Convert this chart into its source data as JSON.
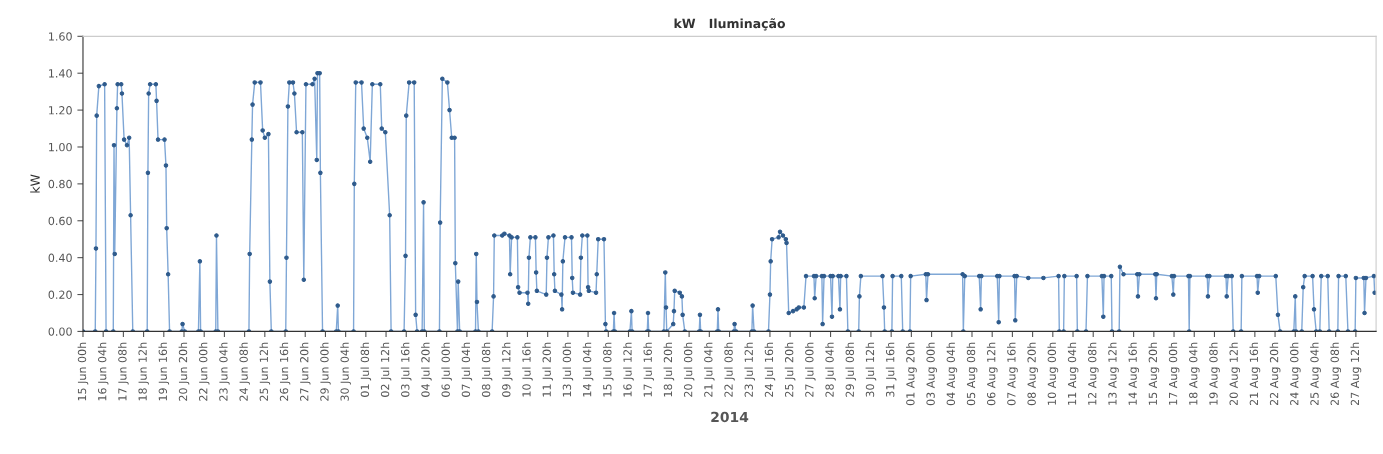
{
  "chart_data": {
    "type": "line",
    "title": "kW   Iluminação",
    "xlabel": "2014",
    "ylabel": "kW",
    "ylim": [
      0,
      1.6
    ],
    "yticks": [
      {
        "value": 0,
        "label": "0.00"
      },
      {
        "value": 0.2,
        "label": "0.20"
      },
      {
        "value": 0.4,
        "label": "0.40"
      },
      {
        "value": 0.6,
        "label": "0.60"
      },
      {
        "value": 0.8,
        "label": "0.80"
      },
      {
        "value": 1.0,
        "label": "1.00"
      },
      {
        "value": 1.2,
        "label": "1.20"
      },
      {
        "value": 1.4,
        "label": "1.40"
      },
      {
        "value": 1.6,
        "label": "1.60"
      }
    ],
    "xlim": [
      "2014-06-15T00:00",
      "2014-08-28T16:00"
    ],
    "xticks": [
      {
        "value": "2014-06-15T00:00",
        "label": "15 Jun 00h"
      },
      {
        "value": "2014-06-16T04:00",
        "label": "16 Jun 04h"
      },
      {
        "value": "2014-06-17T08:00",
        "label": "17 Jun 08h"
      },
      {
        "value": "2014-06-18T12:00",
        "label": "18 Jun 12h"
      },
      {
        "value": "2014-06-19T16:00",
        "label": "19 Jun 16h"
      },
      {
        "value": "2014-06-20T20:00",
        "label": "20 Jun 20h"
      },
      {
        "value": "2014-06-22T00:00",
        "label": "22 Jun 00h"
      },
      {
        "value": "2014-06-23T04:00",
        "label": "23 Jun 04h"
      },
      {
        "value": "2014-06-24T08:00",
        "label": "24 Jun 08h"
      },
      {
        "value": "2014-06-25T12:00",
        "label": "25 Jun 12h"
      },
      {
        "value": "2014-06-26T16:00",
        "label": "26 Jun 16h"
      },
      {
        "value": "2014-06-27T20:00",
        "label": "27 Jun 20h"
      },
      {
        "value": "2014-06-29T00:00",
        "label": "29 Jun 00h"
      },
      {
        "value": "2014-06-30T04:00",
        "label": "30 Jun 04h"
      },
      {
        "value": "2014-07-01T08:00",
        "label": "01 Jul 08h"
      },
      {
        "value": "2014-07-02T12:00",
        "label": "02 Jul 12h"
      },
      {
        "value": "2014-07-03T16:00",
        "label": "03 Jul 16h"
      },
      {
        "value": "2014-07-04T20:00",
        "label": "04 Jul 20h"
      },
      {
        "value": "2014-07-06T00:00",
        "label": "06 Jul 00h"
      },
      {
        "value": "2014-07-07T04:00",
        "label": "07 Jul 04h"
      },
      {
        "value": "2014-07-08T08:00",
        "label": "08 Jul 08h"
      },
      {
        "value": "2014-07-09T12:00",
        "label": "09 Jul 12h"
      },
      {
        "value": "2014-07-10T16:00",
        "label": "10 Jul 16h"
      },
      {
        "value": "2014-07-11T20:00",
        "label": "11 Jul 20h"
      },
      {
        "value": "2014-07-13T00:00",
        "label": "13 Jul 00h"
      },
      {
        "value": "2014-07-14T04:00",
        "label": "14 Jul 04h"
      },
      {
        "value": "2014-07-15T08:00",
        "label": "15 Jul 08h"
      },
      {
        "value": "2014-07-16T12:00",
        "label": "16 Jul 12h"
      },
      {
        "value": "2014-07-17T16:00",
        "label": "17 Jul 16h"
      },
      {
        "value": "2014-07-18T20:00",
        "label": "18 Jul 20h"
      },
      {
        "value": "2014-07-20T00:00",
        "label": "20 Jul 00h"
      },
      {
        "value": "2014-07-21T04:00",
        "label": "21 Jul 04h"
      },
      {
        "value": "2014-07-22T08:00",
        "label": "22 Jul 08h"
      },
      {
        "value": "2014-07-23T12:00",
        "label": "23 Jul 12h"
      },
      {
        "value": "2014-07-24T16:00",
        "label": "24 Jul 16h"
      },
      {
        "value": "2014-07-25T20:00",
        "label": "25 Jul 20h"
      },
      {
        "value": "2014-07-27T00:00",
        "label": "27 Jul 00h"
      },
      {
        "value": "2014-07-28T04:00",
        "label": "28 Jul 04h"
      },
      {
        "value": "2014-07-29T08:00",
        "label": "29 Jul 08h"
      },
      {
        "value": "2014-07-30T12:00",
        "label": "30 Jul 12h"
      },
      {
        "value": "2014-07-31T16:00",
        "label": "31 Jul 16h"
      },
      {
        "value": "2014-08-01T20:00",
        "label": "01 Aug 20h"
      },
      {
        "value": "2014-08-03T00:00",
        "label": "03 Aug 00h"
      },
      {
        "value": "2014-08-04T04:00",
        "label": "04 Aug 04h"
      },
      {
        "value": "2014-08-05T08:00",
        "label": "05 Aug 08h"
      },
      {
        "value": "2014-08-06T12:00",
        "label": "06 Aug 12h"
      },
      {
        "value": "2014-08-07T16:00",
        "label": "07 Aug 16h"
      },
      {
        "value": "2014-08-08T20:00",
        "label": "08 Aug 20h"
      },
      {
        "value": "2014-08-10T00:00",
        "label": "10 Aug 00h"
      },
      {
        "value": "2014-08-11T04:00",
        "label": "11 Aug 04h"
      },
      {
        "value": "2014-08-12T08:00",
        "label": "12 Aug 08h"
      },
      {
        "value": "2014-08-13T12:00",
        "label": "13 Aug 12h"
      },
      {
        "value": "2014-08-14T16:00",
        "label": "14 Aug 16h"
      },
      {
        "value": "2014-08-15T20:00",
        "label": "15 Aug 20h"
      },
      {
        "value": "2014-08-17T00:00",
        "label": "17 Aug 00h"
      },
      {
        "value": "2014-08-18T04:00",
        "label": "18 Aug 04h"
      },
      {
        "value": "2014-08-19T08:00",
        "label": "19 Aug 08h"
      },
      {
        "value": "2014-08-20T12:00",
        "label": "20 Aug 12h"
      },
      {
        "value": "2014-08-21T16:00",
        "label": "21 Aug 16h"
      },
      {
        "value": "2014-08-22T20:00",
        "label": "22 Aug 20h"
      },
      {
        "value": "2014-08-24T00:00",
        "label": "24 Aug 00h"
      },
      {
        "value": "2014-08-25T04:00",
        "label": "25 Aug 04h"
      },
      {
        "value": "2014-08-26T08:00",
        "label": "26 Aug 08h"
      },
      {
        "value": "2014-08-27T12:00",
        "label": "27 Aug 12h"
      }
    ],
    "grid": false,
    "marker": "circle",
    "line_style": "solid",
    "series": [
      {
        "color": "#7fa7d6",
        "x": [
          "2014-06-15T00:00",
          "2014-06-15T17:00",
          "2014-06-15T18:00",
          "2014-06-15T19:00",
          "2014-06-15T22:00",
          "2014-06-16T06:00",
          "2014-06-16T08:00",
          "2014-06-16T18:00",
          "2014-06-16T19:00",
          "2014-06-16T20:00",
          "2014-06-16T23:00",
          "2014-06-17T00:00",
          "2014-06-17T05:00",
          "2014-06-17T06:00",
          "2014-06-17T09:00",
          "2014-06-17T13:00",
          "2014-06-17T16:00",
          "2014-06-17T18:00",
          "2014-06-17T21:00",
          "2014-06-18T17:00",
          "2014-06-18T18:00",
          "2014-06-18T19:00",
          "2014-06-18T21:00",
          "2014-06-19T05:00",
          "2014-06-19T06:00",
          "2014-06-19T08:00",
          "2014-06-19T17:00",
          "2014-06-19T19:00",
          "2014-06-19T20:00",
          "2014-06-19T22:00",
          "2014-06-20T00:00",
          "2014-06-20T17:00",
          "2014-06-20T18:00",
          "2014-06-20T21:00",
          "2014-06-21T16:00",
          "2014-06-21T18:00",
          "2014-06-21T19:00",
          "2014-06-22T16:00",
          "2014-06-22T17:00",
          "2014-06-22T19:00",
          "2014-06-24T14:00",
          "2014-06-24T15:00",
          "2014-06-24T18:00",
          "2014-06-24T19:00",
          "2014-06-24T22:00",
          "2014-06-25T06:00",
          "2014-06-25T09:00",
          "2014-06-25T12:00",
          "2014-06-25T17:00",
          "2014-06-25T19:00",
          "2014-06-25T21:00",
          "2014-06-26T17:00",
          "2014-06-26T18:00",
          "2014-06-26T20:00",
          "2014-06-26T22:00",
          "2014-06-27T03:00",
          "2014-06-27T05:00",
          "2014-06-27T08:00",
          "2014-06-27T16:00",
          "2014-06-27T18:00",
          "2014-06-27T21:00",
          "2014-06-28T06:00",
          "2014-06-28T09:00",
          "2014-06-28T12:00",
          "2014-06-28T13:00",
          "2014-06-28T16:00",
          "2014-06-28T17:00",
          "2014-06-28T20:00",
          "2014-06-29T15:00",
          "2014-06-29T17:00",
          "2014-06-29T18:00",
          "2014-06-30T15:00",
          "2014-06-30T16:00",
          "2014-06-30T18:00",
          "2014-07-01T02:00",
          "2014-07-01T05:00",
          "2014-07-01T10:00",
          "2014-07-01T14:00",
          "2014-07-01T17:00",
          "2014-07-02T04:00",
          "2014-07-02T06:00",
          "2014-07-02T11:00",
          "2014-07-02T17:00",
          "2014-07-02T19:00",
          "2014-07-03T13:00",
          "2014-07-03T15:00",
          "2014-07-03T16:00",
          "2014-07-03T20:00",
          "2014-07-04T03:00",
          "2014-07-04T05:00",
          "2014-07-04T07:00",
          "2014-07-04T14:00",
          "2014-07-04T16:00",
          "2014-07-04T17:00",
          "2014-07-05T14:00",
          "2014-07-05T15:00",
          "2014-07-05T18:00",
          "2014-07-06T01:00",
          "2014-07-06T04:00",
          "2014-07-06T07:00",
          "2014-07-06T11:00",
          "2014-07-06T12:00",
          "2014-07-06T15:00",
          "2014-07-06T16:00",
          "2014-07-06T18:00",
          "2014-07-07T16:00",
          "2014-07-07T17:00",
          "2014-07-07T18:00",
          "2014-07-07T20:00",
          "2014-07-08T15:00",
          "2014-07-08T17:00",
          "2014-07-08T18:00",
          "2014-07-09T05:00",
          "2014-07-09T08:00",
          "2014-07-09T15:00",
          "2014-07-09T16:00",
          "2014-07-09T18:00",
          "2014-07-10T02:00",
          "2014-07-10T03:00",
          "2014-07-10T05:00",
          "2014-07-10T16:00",
          "2014-07-10T17:00",
          "2014-07-10T18:00",
          "2014-07-10T20:00",
          "2014-07-11T03:00",
          "2014-07-11T04:00",
          "2014-07-11T05:00",
          "2014-07-11T18:00",
          "2014-07-11T19:00",
          "2014-07-11T21:00",
          "2014-07-12T04:00",
          "2014-07-12T05:00",
          "2014-07-12T06:00",
          "2014-07-12T15:00",
          "2014-07-12T16:00",
          "2014-07-12T17:00",
          "2014-07-12T20:00",
          "2014-07-13T05:00",
          "2014-07-13T06:00",
          "2014-07-13T07:00",
          "2014-07-13T17:00",
          "2014-07-13T18:00",
          "2014-07-13T20:00",
          "2014-07-14T03:00",
          "2014-07-14T04:00",
          "2014-07-14T05:00",
          "2014-07-14T15:00",
          "2014-07-14T16:00",
          "2014-07-14T18:00",
          "2014-07-15T02:00",
          "2014-07-15T04:00",
          "2014-07-15T05:00",
          "2014-07-15T15:00",
          "2014-07-15T16:00",
          "2014-07-15T17:00",
          "2014-07-16T14:00",
          "2014-07-16T16:00",
          "2014-07-16T17:00",
          "2014-07-17T14:00",
          "2014-07-17T15:00",
          "2014-07-17T16:00",
          "2014-07-18T13:00",
          "2014-07-18T15:00",
          "2014-07-18T16:00",
          "2014-07-18T17:00",
          "2014-07-19T02:00",
          "2014-07-19T03:00",
          "2014-07-19T04:00",
          "2014-07-19T11:00",
          "2014-07-19T14:00",
          "2014-07-19T15:00",
          "2014-07-19T18:00",
          "2014-07-20T14:00",
          "2014-07-20T15:00",
          "2014-07-20T16:00",
          "2014-07-21T15:00",
          "2014-07-21T16:00",
          "2014-07-21T17:00",
          "2014-07-22T14:00",
          "2014-07-22T15:00",
          "2014-07-22T17:00",
          "2014-07-23T15:00",
          "2014-07-23T16:00",
          "2014-07-23T18:00",
          "2014-07-24T14:00",
          "2014-07-24T16:00",
          "2014-07-24T17:00",
          "2014-07-24T19:00",
          "2014-07-25T04:00",
          "2014-07-25T06:00",
          "2014-07-25T10:00",
          "2014-07-25T14:00",
          "2014-07-25T15:00",
          "2014-07-25T18:00",
          "2014-07-26T00:00",
          "2014-07-26T05:00",
          "2014-07-26T08:00",
          "2014-07-26T15:00",
          "2014-07-26T18:00",
          "2014-07-27T05:00",
          "2014-07-27T06:00",
          "2014-07-27T08:00",
          "2014-07-27T16:00",
          "2014-07-27T17:00",
          "2014-07-27T19:00",
          "2014-07-28T04:00",
          "2014-07-28T06:00",
          "2014-07-28T07:00",
          "2014-07-28T15:00",
          "2014-07-28T17:00",
          "2014-07-28T18:00",
          "2014-07-29T02:00",
          "2014-07-29T04:00",
          "2014-07-29T19:00",
          "2014-07-29T20:00",
          "2014-07-29T22:00",
          "2014-07-31T04:00",
          "2014-07-31T06:00",
          "2014-07-31T07:00",
          "2014-07-31T17:00",
          "2014-07-31T18:00",
          "2014-08-01T06:00",
          "2014-08-01T08:00",
          "2014-08-01T18:00",
          "2014-08-01T19:00",
          "2014-08-02T16:00",
          "2014-08-02T17:00",
          "2014-08-02T19:00",
          "2014-08-04T19:00",
          "2014-08-04T20:00",
          "2014-08-04T22:00",
          "2014-08-05T18:00",
          "2014-08-05T20:00",
          "2014-08-05T21:00",
          "2014-08-06T19:00",
          "2014-08-06T21:00",
          "2014-08-06T22:00",
          "2014-08-07T19:00",
          "2014-08-07T20:00",
          "2014-08-07T22:00",
          "2014-08-08T14:00",
          "2014-08-09T11:00",
          "2014-08-10T08:00",
          "2014-08-10T09:00",
          "2014-08-10T15:00",
          "2014-08-10T16:00",
          "2014-08-11T09:00",
          "2014-08-11T10:00",
          "2014-08-11T22:00",
          "2014-08-12T00:00",
          "2014-08-12T20:00",
          "2014-08-12T22:00",
          "2014-08-12T23:00",
          "2014-08-13T09:00",
          "2014-08-13T10:00",
          "2014-08-13T20:00",
          "2014-08-13T21:00",
          "2014-08-14T02:00",
          "2014-08-14T21:00",
          "2014-08-14T22:00",
          "2014-08-15T00:00",
          "2014-08-15T22:00",
          "2014-08-15T23:00",
          "2014-08-16T00:00",
          "2014-08-16T21:00",
          "2014-08-16T23:00",
          "2014-08-17T00:00",
          "2014-08-17T20:00",
          "2014-08-17T21:00",
          "2014-08-17T22:00",
          "2014-08-18T22:00",
          "2014-08-18T23:00",
          "2014-08-19T01:00",
          "2014-08-20T00:00",
          "2014-08-20T01:00",
          "2014-08-20T03:00",
          "2014-08-20T08:00",
          "2014-08-20T10:00",
          "2014-08-20T21:00",
          "2014-08-20T22:00",
          "2014-08-21T19:00",
          "2014-08-21T20:00",
          "2014-08-21T22:00",
          "2014-08-22T21:00",
          "2014-08-23T00:00",
          "2014-08-23T03:00",
          "2014-08-23T22:00",
          "2014-08-24T00:00",
          "2014-08-24T01:00",
          "2014-08-24T09:00",
          "2014-08-24T11:00",
          "2014-08-24T13:00",
          "2014-08-25T00:00",
          "2014-08-25T02:00",
          "2014-08-25T05:00",
          "2014-08-25T10:00",
          "2014-08-25T12:00",
          "2014-08-25T21:00",
          "2014-08-25T23:00",
          "2014-08-26T11:00",
          "2014-08-26T12:00",
          "2014-08-26T22:00",
          "2014-08-27T01:00",
          "2014-08-27T11:00",
          "2014-08-27T12:00",
          "2014-08-27T23:00",
          "2014-08-28T00:00",
          "2014-08-28T02:00",
          "2014-08-28T13:00",
          "2014-08-28T14:00"
        ],
        "values": [
          0,
          0,
          0.45,
          1.17,
          1.33,
          1.34,
          0,
          0,
          1.01,
          0.42,
          1.21,
          1.34,
          1.34,
          1.29,
          1.04,
          1.01,
          1.05,
          0.63,
          0,
          0,
          0.86,
          1.29,
          1.34,
          1.34,
          1.25,
          1.04,
          1.04,
          0.9,
          0.56,
          0.31,
          0,
          0,
          0.04,
          0,
          0,
          0.38,
          0,
          0,
          0.52,
          0,
          0,
          0.42,
          1.04,
          1.23,
          1.35,
          1.35,
          1.09,
          1.05,
          1.07,
          0.27,
          0,
          0,
          0.4,
          1.22,
          1.35,
          1.35,
          1.29,
          1.08,
          1.08,
          0.28,
          1.34,
          1.34,
          1.37,
          0.93,
          1.4,
          1.4,
          0.86,
          0,
          0,
          0.14,
          0,
          0,
          0.8,
          1.35,
          1.35,
          1.1,
          1.05,
          0.92,
          1.34,
          1.34,
          1.1,
          1.08,
          0.63,
          0,
          0,
          0.41,
          1.17,
          1.35,
          1.35,
          0.09,
          0,
          0,
          0.7,
          0,
          0,
          0.59,
          1.37,
          1.35,
          1.2,
          1.05,
          1.05,
          0.37,
          0,
          0.27,
          0,
          0,
          0.42,
          0.16,
          0,
          0,
          0.19,
          0.52,
          0.52,
          0.53,
          0.52,
          0.31,
          0.51,
          0.51,
          0.24,
          0.21,
          0.21,
          0.15,
          0.4,
          0.51,
          0.51,
          0.32,
          0.22,
          0.2,
          0.4,
          0.51,
          0.52,
          0.31,
          0.22,
          0.2,
          0.12,
          0.38,
          0.51,
          0.51,
          0.29,
          0.21,
          0.2,
          0.4,
          0.52,
          0.52,
          0.24,
          0.22,
          0.21,
          0.31,
          0.5,
          0.5,
          0.04,
          0,
          0,
          0.1,
          0,
          0,
          0.11,
          0,
          0,
          0.1,
          0,
          0,
          0.32,
          0.13,
          0,
          0.04,
          0.11,
          0.22,
          0.21,
          0.19,
          0.09,
          0,
          0,
          0.09,
          0,
          0,
          0.12,
          0,
          0,
          0.04,
          0,
          0,
          0.14,
          0,
          0,
          0.2,
          0.38,
          0.5,
          0.51,
          0.54,
          0.52,
          0.5,
          0.48,
          0.1,
          0.11,
          0.12,
          0.13,
          0.13,
          0.3,
          0.3,
          0.18,
          0.3,
          0.3,
          0.04,
          0.3,
          0.3,
          0.08,
          0.3,
          0.3,
          0.12,
          0.3,
          0.3,
          0,
          0,
          0.19,
          0.3,
          0.3,
          0.13,
          0,
          0,
          0.3,
          0.3,
          0,
          0,
          0.3,
          0.31,
          0.17,
          0.31,
          0.31,
          0,
          0.3,
          0.3,
          0.12,
          0.3,
          0.3,
          0.05,
          0.3,
          0.3,
          0.06,
          0.3,
          0.29,
          0.29,
          0.3,
          0,
          0,
          0.3,
          0.3,
          0,
          0,
          0.3,
          0.3,
          0.08,
          0.3,
          0.3,
          0,
          0,
          0.35,
          0.31,
          0.31,
          0.19,
          0.31,
          0.31,
          0.18,
          0.31,
          0.3,
          0.2,
          0.3,
          0.3,
          0,
          0.3,
          0.3,
          0.19,
          0.3,
          0.3,
          0.19,
          0.3,
          0.3,
          0,
          0,
          0.3,
          0.3,
          0.21,
          0.3,
          0.3,
          0.09,
          0,
          0,
          0.19,
          0,
          0,
          0.24,
          0.3,
          0.3,
          0.12,
          0,
          0,
          0.3,
          0.3,
          0,
          0,
          0.3,
          0.3,
          0,
          0,
          0.29,
          0.29,
          0.1,
          0.29,
          0.3,
          0.21
        ]
      }
    ]
  }
}
